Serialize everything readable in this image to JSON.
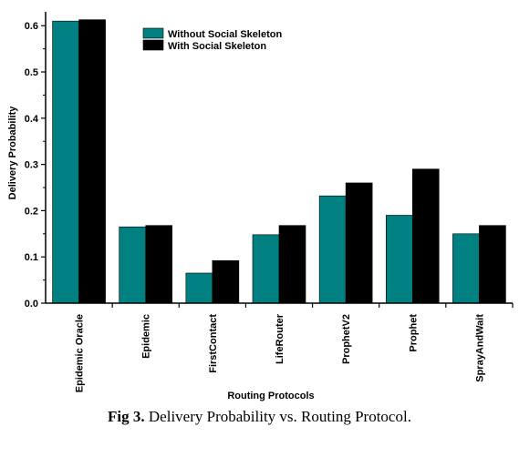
{
  "caption": {
    "label": "Fig 3.",
    "text": " Delivery Probability vs. Routing Protocol."
  },
  "chart_data": {
    "type": "bar",
    "categories": [
      "Epidemic Oracle",
      "Epidemic",
      "FirstContact",
      "LifeRouter",
      "ProphetV2",
      "Prophet",
      "SprayAndWait"
    ],
    "series": [
      {
        "name": "Without Social Skeleton",
        "color": "#008080",
        "values": [
          0.61,
          0.165,
          0.065,
          0.148,
          0.232,
          0.19,
          0.15
        ]
      },
      {
        "name": "With Social Skeleton",
        "color": "#000000",
        "values": [
          0.613,
          0.168,
          0.092,
          0.168,
          0.26,
          0.29,
          0.168
        ]
      }
    ],
    "xlabel": "Routing Protocols",
    "ylabel": "Delivery Probability",
    "ylim": [
      0,
      0.63
    ],
    "yticks": [
      "0.0",
      "0.1",
      "0.2",
      "0.3",
      "0.4",
      "0.5",
      "0.6"
    ],
    "legend_position": "top-center",
    "grid": false
  }
}
